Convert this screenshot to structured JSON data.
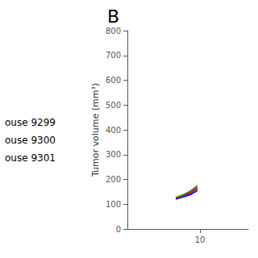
{
  "chart_data": {
    "type": "line",
    "title": "B",
    "ylabel": "Tumor volume (mm³)",
    "x": [
      9.0,
      9.3,
      9.6,
      9.9
    ],
    "series": [
      {
        "color": "#0000dd",
        "values": [
          120,
          128,
          138,
          155
        ]
      },
      {
        "color": "#8800aa",
        "values": [
          122,
          132,
          143,
          162
        ]
      },
      {
        "color": "#dd0000",
        "values": [
          125,
          135,
          148,
          168
        ]
      },
      {
        "color": "#00aa00",
        "values": [
          127,
          138,
          153,
          175
        ]
      }
    ],
    "xlim": [
      7,
      12
    ],
    "xticks": [
      10
    ],
    "ylim": [
      0,
      800
    ],
    "yticks": [
      0,
      100,
      200,
      300,
      400,
      500,
      600,
      700,
      800
    ],
    "annotations": [
      "ouse 9299",
      "ouse 9300",
      "ouse 9301"
    ],
    "grid": false
  }
}
